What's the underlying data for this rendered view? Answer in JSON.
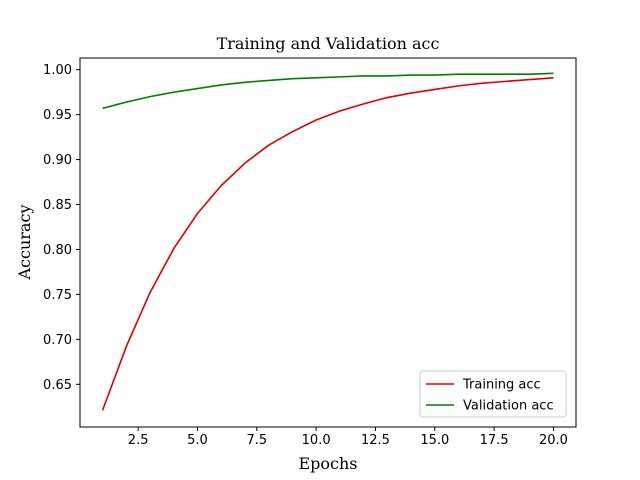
{
  "chart_data": {
    "type": "line",
    "title": "Training and Validation acc",
    "xlabel": "Epochs",
    "ylabel": "Accuracy",
    "xlim": [
      0.05,
      20.95
    ],
    "ylim": [
      0.6025,
      1.013
    ],
    "x_ticks": [
      2.5,
      5.0,
      7.5,
      10.0,
      12.5,
      15.0,
      17.5,
      20.0
    ],
    "x_tick_labels": [
      "2.5",
      "5.0",
      "7.5",
      "10.0",
      "12.5",
      "15.0",
      "17.5",
      "20.0"
    ],
    "y_ticks": [
      0.65,
      0.7,
      0.75,
      0.8,
      0.85,
      0.9,
      0.95,
      1.0
    ],
    "y_tick_labels": [
      "0.65",
      "0.70",
      "0.75",
      "0.80",
      "0.85",
      "0.90",
      "0.95",
      "1.00"
    ],
    "grid": false,
    "legend_position": "lower-right",
    "x": [
      1,
      2,
      3,
      4,
      5,
      6,
      7,
      8,
      9,
      10,
      11,
      12,
      13,
      14,
      15,
      16,
      17,
      18,
      19,
      20
    ],
    "series": [
      {
        "name": "Training acc",
        "color": "#e00000",
        "values": [
          0.621,
          0.692,
          0.752,
          0.801,
          0.84,
          0.871,
          0.896,
          0.916,
          0.931,
          0.944,
          0.954,
          0.962,
          0.969,
          0.974,
          0.978,
          0.982,
          0.985,
          0.987,
          0.989,
          0.991
        ]
      },
      {
        "name": "Validation acc",
        "color": "#008000",
        "values": [
          0.957,
          0.964,
          0.97,
          0.975,
          0.979,
          0.983,
          0.986,
          0.988,
          0.99,
          0.991,
          0.992,
          0.993,
          0.993,
          0.994,
          0.994,
          0.995,
          0.995,
          0.995,
          0.995,
          0.996
        ]
      }
    ]
  }
}
